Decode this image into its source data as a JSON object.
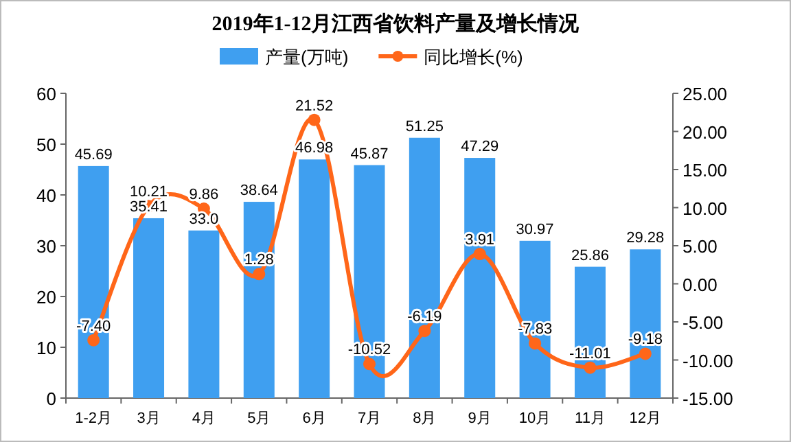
{
  "chart_data": {
    "type": "bar",
    "title": "2019年1-12月江西省饮料产量及增长情况",
    "categories": [
      "1-2月",
      "3月",
      "4月",
      "5月",
      "6月",
      "7月",
      "8月",
      "9月",
      "10月",
      "11月",
      "12月"
    ],
    "series": [
      {
        "name": "产量(万吨)",
        "color": "#3f9ff0",
        "values": [
          45.69,
          35.41,
          33.0,
          38.64,
          46.98,
          45.87,
          51.25,
          47.29,
          30.97,
          25.86,
          29.28
        ],
        "value_labels": [
          "45.69",
          "35.41",
          "33.0",
          "38.64",
          "46.98",
          "45.87",
          "51.25",
          "47.29",
          "30.97",
          "25.86",
          "29.28"
        ]
      },
      {
        "name": "同比增长(%)",
        "type": "line",
        "axis": "y2",
        "color": "#ff6619",
        "marker": "circle",
        "values": [
          -7.4,
          10.21,
          9.86,
          1.28,
          21.52,
          -10.52,
          -6.19,
          3.91,
          -7.83,
          -11.01,
          -9.18
        ],
        "value_labels": [
          "-7.40",
          "10.21",
          "9.86",
          "1.28",
          "21.52",
          "-10.52",
          "-6.19",
          "3.91",
          "-7.83",
          "-11.01",
          "-9.18"
        ]
      }
    ],
    "ylim": [
      0,
      60
    ],
    "yticks": [
      0,
      10,
      20,
      30,
      40,
      50,
      60
    ],
    "y2lim": [
      -15,
      25
    ],
    "y2ticks": [
      {
        "value": -15,
        "label": "-15.00"
      },
      {
        "value": -10,
        "label": "-10.00"
      },
      {
        "value": -5,
        "label": "-5.00"
      },
      {
        "value": 0,
        "label": "0.00"
      },
      {
        "value": 5,
        "label": "5.00"
      },
      {
        "value": 10,
        "label": "10.00"
      },
      {
        "value": 15,
        "label": "15.00"
      },
      {
        "value": 20,
        "label": "20.00"
      },
      {
        "value": 25,
        "label": "25.00"
      }
    ],
    "grid": false,
    "legend": "top",
    "data_labels": true
  }
}
